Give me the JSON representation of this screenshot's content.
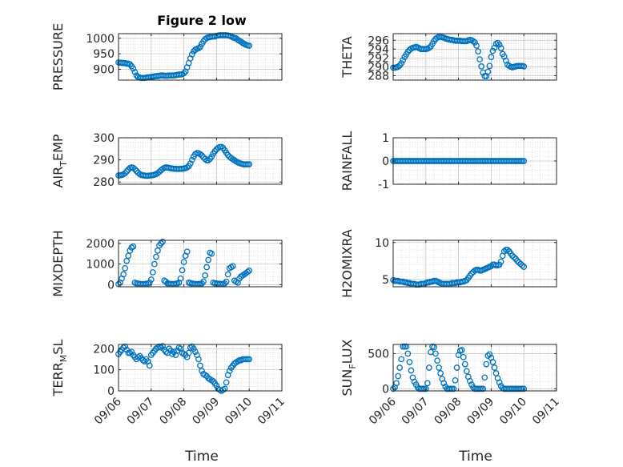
{
  "figure": {
    "title": "Figure 2 low",
    "xlabel": "Time",
    "marker_color": "#0072BD",
    "x_ticks": [
      "09/06",
      "09/07",
      "09/08",
      "09/09",
      "09/10",
      "09/11"
    ]
  },
  "chart_data": [
    {
      "type": "scatter",
      "ylabel": "PRESSURE",
      "ylabel_sub": "",
      "xlim": [
        0,
        5
      ],
      "ylim": [
        865,
        1015
      ],
      "yticks": [
        900,
        950,
        1000
      ],
      "x": [
        0.0,
        0.05,
        0.1,
        0.15,
        0.2,
        0.25,
        0.3,
        0.35,
        0.4,
        0.45,
        0.5,
        0.55,
        0.6,
        0.65,
        0.7,
        0.75,
        0.8,
        0.85,
        0.9,
        0.95,
        1.0,
        1.05,
        1.1,
        1.15,
        1.2,
        1.25,
        1.3,
        1.35,
        1.4,
        1.45,
        1.5,
        1.55,
        1.6,
        1.65,
        1.7,
        1.75,
        1.8,
        1.85,
        1.9,
        1.95,
        2.0,
        2.05,
        2.1,
        2.15,
        2.2,
        2.25,
        2.3,
        2.35,
        2.4,
        2.45,
        2.5,
        2.55,
        2.6,
        2.65,
        2.7,
        2.75,
        2.8,
        2.85,
        2.9,
        2.95,
        3.0,
        3.05,
        3.1,
        3.15,
        3.2,
        3.25,
        3.3,
        3.35,
        3.4,
        3.45,
        3.5,
        3.55,
        3.6,
        3.65,
        3.7,
        3.75,
        3.8,
        3.85,
        3.9,
        3.95,
        4.0
      ],
      "y": [
        922,
        921,
        921,
        920,
        920,
        918,
        918,
        916,
        910,
        902,
        891,
        880,
        875,
        873,
        872,
        872,
        872,
        873,
        874,
        874,
        875,
        876,
        877,
        878,
        878,
        879,
        880,
        880,
        879,
        879,
        879,
        880,
        880,
        880,
        880,
        881,
        882,
        883,
        883,
        884,
        887,
        893,
        906,
        920,
        935,
        948,
        958,
        963,
        966,
        968,
        972,
        982,
        990,
        997,
        1001,
        1003,
        1004,
        1005,
        1006,
        1006,
        1008,
        1009,
        1010,
        1010,
        1010,
        1010,
        1010,
        1009,
        1008,
        1006,
        1003,
        1001,
        1000,
        995,
        992,
        989,
        985,
        982,
        979,
        977,
        976
      ]
    },
    {
      "type": "scatter",
      "ylabel": "THETA",
      "ylabel_sub": "",
      "xlim": [
        0,
        5
      ],
      "ylim": [
        287,
        297.5
      ],
      "yticks": [
        288,
        290,
        292,
        294,
        296
      ],
      "x": [
        0.0,
        0.05,
        0.1,
        0.15,
        0.2,
        0.25,
        0.3,
        0.35,
        0.4,
        0.45,
        0.5,
        0.55,
        0.6,
        0.65,
        0.7,
        0.75,
        0.8,
        0.85,
        0.9,
        0.95,
        1.0,
        1.05,
        1.1,
        1.15,
        1.2,
        1.25,
        1.3,
        1.35,
        1.4,
        1.45,
        1.5,
        1.55,
        1.6,
        1.65,
        1.7,
        1.75,
        1.8,
        1.85,
        1.9,
        1.95,
        2.0,
        2.05,
        2.1,
        2.15,
        2.2,
        2.25,
        2.3,
        2.35,
        2.4,
        2.45,
        2.5,
        2.55,
        2.6,
        2.65,
        2.7,
        2.75,
        2.8,
        2.85,
        2.9,
        2.95,
        3.0,
        3.05,
        3.1,
        3.15,
        3.2,
        3.25,
        3.3,
        3.35,
        3.4,
        3.45,
        3.5,
        3.55,
        3.6,
        3.65,
        3.7,
        3.75,
        3.8,
        3.85,
        3.9,
        3.95,
        4.0
      ],
      "y": [
        289.8,
        289.8,
        289.9,
        290.0,
        290.3,
        290.8,
        291.5,
        292.2,
        292.8,
        293.4,
        293.8,
        294.1,
        294.3,
        294.4,
        294.5,
        294.4,
        294.2,
        294.0,
        294.0,
        294.0,
        294.0,
        294.1,
        294.3,
        294.6,
        295.2,
        295.8,
        296.3,
        296.6,
        296.8,
        296.8,
        296.7,
        296.6,
        296.4,
        296.3,
        296.2,
        296.1,
        296.1,
        296.0,
        295.9,
        295.9,
        295.9,
        295.9,
        295.8,
        295.8,
        295.8,
        295.8,
        296.0,
        296.1,
        296.0,
        295.8,
        295.5,
        294.8,
        293.5,
        291.7,
        290.1,
        288.7,
        287.9,
        287.9,
        288.9,
        290.2,
        292.2,
        293.6,
        294.3,
        295.2,
        295.4,
        295.0,
        294.2,
        292.9,
        292.3,
        291.4,
        290.5,
        290.2,
        290.0,
        289.9,
        290.0,
        290.1,
        290.2,
        290.2,
        290.2,
        290.2,
        290.1
      ]
    },
    {
      "type": "scatter",
      "ylabel": "AIR",
      "ylabel_sub": "T",
      "ylabel_suffix": "EMP",
      "xlim": [
        0,
        5
      ],
      "ylim": [
        279,
        300
      ],
      "yticks": [
        280,
        290,
        300
      ],
      "x": [
        0.0,
        0.05,
        0.1,
        0.15,
        0.2,
        0.25,
        0.3,
        0.35,
        0.4,
        0.45,
        0.5,
        0.55,
        0.6,
        0.65,
        0.7,
        0.75,
        0.8,
        0.85,
        0.9,
        0.95,
        1.0,
        1.05,
        1.1,
        1.15,
        1.2,
        1.25,
        1.3,
        1.35,
        1.4,
        1.45,
        1.5,
        1.55,
        1.6,
        1.65,
        1.7,
        1.75,
        1.8,
        1.85,
        1.9,
        1.95,
        2.0,
        2.05,
        2.1,
        2.15,
        2.2,
        2.25,
        2.3,
        2.35,
        2.4,
        2.45,
        2.5,
        2.55,
        2.6,
        2.65,
        2.7,
        2.75,
        2.8,
        2.85,
        2.9,
        2.95,
        3.0,
        3.05,
        3.1,
        3.15,
        3.2,
        3.25,
        3.3,
        3.35,
        3.4,
        3.45,
        3.5,
        3.55,
        3.6,
        3.65,
        3.7,
        3.75,
        3.8,
        3.85,
        3.9,
        3.95,
        4.0
      ],
      "y": [
        283.0,
        283.0,
        283.2,
        283.5,
        284.0,
        284.8,
        285.6,
        286.3,
        286.6,
        286.4,
        285.8,
        285.0,
        284.2,
        283.6,
        283.2,
        283.0,
        282.9,
        282.8,
        282.8,
        282.9,
        283.0,
        283.1,
        283.3,
        283.6,
        284.0,
        284.6,
        285.3,
        285.9,
        286.4,
        286.6,
        286.5,
        286.4,
        286.2,
        286.1,
        286.0,
        286.0,
        285.9,
        285.9,
        286.0,
        286.0,
        286.1,
        286.3,
        286.6,
        287.2,
        288.4,
        290.0,
        291.5,
        292.6,
        293.1,
        293.0,
        292.6,
        292.0,
        291.2,
        290.4,
        289.8,
        289.8,
        290.5,
        291.5,
        292.8,
        293.9,
        294.8,
        295.4,
        295.8,
        295.9,
        295.4,
        294.3,
        293.2,
        292.2,
        291.4,
        290.8,
        290.3,
        289.8,
        289.3,
        288.9,
        288.6,
        288.3,
        288.1,
        287.9,
        288.0,
        288.0,
        288.0
      ]
    },
    {
      "type": "scatter",
      "ylabel": "RAINFALL",
      "ylabel_sub": "",
      "xlim": [
        0,
        5
      ],
      "ylim": [
        -1,
        1
      ],
      "yticks": [
        -1,
        0,
        1
      ],
      "x": [
        0.0,
        0.05,
        0.1,
        0.15,
        0.2,
        0.25,
        0.3,
        0.35,
        0.4,
        0.45,
        0.5,
        0.55,
        0.6,
        0.65,
        0.7,
        0.75,
        0.8,
        0.85,
        0.9,
        0.95,
        1.0,
        1.05,
        1.1,
        1.15,
        1.2,
        1.25,
        1.3,
        1.35,
        1.4,
        1.45,
        1.5,
        1.55,
        1.6,
        1.65,
        1.7,
        1.75,
        1.8,
        1.85,
        1.9,
        1.95,
        2.0,
        2.05,
        2.1,
        2.15,
        2.2,
        2.25,
        2.3,
        2.35,
        2.4,
        2.45,
        2.5,
        2.55,
        2.6,
        2.65,
        2.7,
        2.75,
        2.8,
        2.85,
        2.9,
        2.95,
        3.0,
        3.05,
        3.1,
        3.15,
        3.2,
        3.25,
        3.3,
        3.35,
        3.4,
        3.45,
        3.5,
        3.55,
        3.6,
        3.65,
        3.7,
        3.75,
        3.8,
        3.85,
        3.9,
        3.95,
        4.0
      ],
      "y": [
        0,
        0,
        0,
        0,
        0,
        0,
        0,
        0,
        0,
        0,
        0,
        0,
        0,
        0,
        0,
        0,
        0,
        0,
        0,
        0,
        0,
        0,
        0,
        0,
        0,
        0,
        0,
        0,
        0,
        0,
        0,
        0,
        0,
        0,
        0,
        0,
        0,
        0,
        0,
        0,
        0,
        0,
        0,
        0,
        0,
        0,
        0,
        0,
        0,
        0,
        0,
        0,
        0,
        0,
        0,
        0,
        0,
        0,
        0,
        0,
        0,
        0,
        0,
        0,
        0,
        0,
        0,
        0,
        0,
        0,
        0,
        0,
        0,
        0,
        0,
        0,
        0,
        0,
        0,
        0,
        0
      ]
    },
    {
      "type": "scatter",
      "ylabel": "MIXDEPTH",
      "ylabel_sub": "",
      "xlim": [
        0,
        5
      ],
      "ylim": [
        -100,
        2150
      ],
      "yticks": [
        0,
        1000,
        2000
      ],
      "x": [
        0.0,
        0.05,
        0.1,
        0.15,
        0.2,
        0.25,
        0.3,
        0.35,
        0.4,
        0.45,
        0.5,
        0.55,
        0.6,
        0.65,
        0.7,
        0.75,
        0.8,
        0.85,
        0.9,
        0.95,
        1.0,
        1.05,
        1.1,
        1.15,
        1.2,
        1.25,
        1.3,
        1.35,
        1.4,
        1.45,
        1.5,
        1.55,
        1.6,
        1.65,
        1.7,
        1.75,
        1.8,
        1.85,
        1.9,
        1.95,
        2.0,
        2.05,
        2.1,
        2.15,
        2.2,
        2.25,
        2.3,
        2.35,
        2.4,
        2.45,
        2.5,
        2.55,
        2.6,
        2.65,
        2.7,
        2.75,
        2.8,
        2.85,
        2.9,
        2.95,
        3.0,
        3.05,
        3.1,
        3.15,
        3.2,
        3.25,
        3.3,
        3.35,
        3.4,
        3.45,
        3.5,
        3.55,
        3.6,
        3.65,
        3.7,
        3.75,
        3.8,
        3.85,
        3.9,
        3.95,
        4.0
      ],
      "y": [
        30,
        100,
        300,
        500,
        800,
        1150,
        1400,
        1650,
        1800,
        1850,
        100,
        60,
        50,
        40,
        30,
        30,
        30,
        40,
        60,
        100,
        250,
        600,
        1000,
        1350,
        1650,
        1900,
        2000,
        2080,
        200,
        150,
        60,
        40,
        30,
        30,
        30,
        40,
        60,
        100,
        300,
        700,
        1100,
        1400,
        1600,
        100,
        80,
        60,
        40,
        30,
        30,
        30,
        40,
        60,
        150,
        450,
        850,
        1200,
        1550,
        1500,
        100,
        70,
        60,
        50,
        40,
        30,
        30,
        60,
        150,
        500,
        800,
        850,
        900,
        200,
        150,
        100,
        300,
        400,
        450,
        500,
        560,
        620,
        680
      ]
    },
    {
      "type": "scatter",
      "ylabel": "H2OMIXRA",
      "ylabel_sub": "",
      "xlim": [
        0,
        5
      ],
      "ylim": [
        4,
        10.3
      ],
      "yticks": [
        5,
        10
      ],
      "x": [
        0.0,
        0.05,
        0.1,
        0.15,
        0.2,
        0.25,
        0.3,
        0.35,
        0.4,
        0.45,
        0.5,
        0.55,
        0.6,
        0.65,
        0.7,
        0.75,
        0.8,
        0.85,
        0.9,
        0.95,
        1.0,
        1.05,
        1.1,
        1.15,
        1.2,
        1.25,
        1.3,
        1.35,
        1.4,
        1.45,
        1.5,
        1.55,
        1.6,
        1.65,
        1.7,
        1.75,
        1.8,
        1.85,
        1.9,
        1.95,
        2.0,
        2.05,
        2.1,
        2.15,
        2.2,
        2.25,
        2.3,
        2.35,
        2.4,
        2.45,
        2.5,
        2.55,
        2.6,
        2.65,
        2.7,
        2.75,
        2.8,
        2.85,
        2.9,
        2.95,
        3.0,
        3.05,
        3.1,
        3.15,
        3.2,
        3.25,
        3.3,
        3.35,
        3.4,
        3.45,
        3.5,
        3.55,
        3.6,
        3.65,
        3.7,
        3.75,
        3.8,
        3.85,
        3.9,
        3.95,
        4.0
      ],
      "y": [
        4.9,
        4.8,
        4.8,
        4.8,
        4.7,
        4.7,
        4.7,
        4.6,
        4.6,
        4.5,
        4.5,
        4.4,
        4.4,
        4.4,
        4.3,
        4.3,
        4.3,
        4.4,
        4.4,
        4.4,
        4.5,
        4.6,
        4.6,
        4.7,
        4.7,
        4.8,
        4.8,
        4.7,
        4.6,
        4.5,
        4.4,
        4.4,
        4.4,
        4.4,
        4.4,
        4.4,
        4.5,
        4.5,
        4.5,
        4.6,
        4.6,
        4.6,
        4.7,
        4.7,
        4.8,
        4.9,
        5.2,
        5.5,
        5.8,
        6.0,
        6.2,
        6.3,
        6.3,
        6.2,
        6.2,
        6.3,
        6.4,
        6.5,
        6.6,
        6.7,
        6.8,
        7.0,
        7.0,
        6.9,
        6.9,
        7.0,
        7.4,
        8.2,
        8.8,
        9.0,
        9.0,
        8.8,
        8.5,
        8.2,
        8.0,
        7.8,
        7.5,
        7.3,
        7.1,
        6.9,
        6.7
      ]
    },
    {
      "type": "scatter",
      "ylabel": "TERR",
      "ylabel_sub": "M",
      "ylabel_suffix": "SL",
      "xlim": [
        0,
        5
      ],
      "ylim": [
        0,
        220
      ],
      "yticks": [
        0,
        100,
        200
      ],
      "x": [
        0.0,
        0.05,
        0.1,
        0.15,
        0.2,
        0.25,
        0.3,
        0.35,
        0.4,
        0.45,
        0.5,
        0.55,
        0.6,
        0.65,
        0.7,
        0.75,
        0.8,
        0.85,
        0.9,
        0.95,
        1.0,
        1.05,
        1.1,
        1.15,
        1.2,
        1.25,
        1.3,
        1.35,
        1.4,
        1.45,
        1.5,
        1.55,
        1.6,
        1.65,
        1.7,
        1.75,
        1.8,
        1.85,
        1.9,
        1.95,
        2.0,
        2.05,
        2.1,
        2.15,
        2.2,
        2.25,
        2.3,
        2.35,
        2.4,
        2.45,
        2.5,
        2.55,
        2.6,
        2.65,
        2.7,
        2.75,
        2.8,
        2.85,
        2.9,
        2.95,
        3.0,
        3.05,
        3.1,
        3.15,
        3.2,
        3.25,
        3.3,
        3.35,
        3.4,
        3.45,
        3.5,
        3.55,
        3.6,
        3.65,
        3.7,
        3.75,
        3.8,
        3.85,
        3.9,
        3.95,
        4.0
      ],
      "y": [
        175,
        185,
        195,
        205,
        210,
        195,
        180,
        180,
        185,
        170,
        160,
        150,
        160,
        165,
        155,
        145,
        140,
        150,
        140,
        120,
        170,
        180,
        190,
        200,
        205,
        210,
        205,
        212,
        195,
        185,
        180,
        200,
        190,
        175,
        185,
        170,
        190,
        205,
        200,
        180,
        175,
        170,
        160,
        180,
        205,
        210,
        200,
        185,
        170,
        150,
        120,
        95,
        80,
        75,
        70,
        60,
        55,
        50,
        45,
        35,
        25,
        10,
        5,
        0,
        5,
        10,
        40,
        75,
        95,
        110,
        120,
        130,
        135,
        140,
        145,
        145,
        150,
        150,
        150,
        150,
        150
      ]
    },
    {
      "type": "scatter",
      "ylabel": "SUN",
      "ylabel_sub": "F",
      "ylabel_suffix": "LUX",
      "xlim": [
        0,
        5
      ],
      "ylim": [
        -30,
        630
      ],
      "yticks": [
        0,
        500
      ],
      "x": [
        0.0,
        0.05,
        0.1,
        0.15,
        0.2,
        0.25,
        0.3,
        0.35,
        0.4,
        0.45,
        0.5,
        0.55,
        0.6,
        0.65,
        0.7,
        0.75,
        0.8,
        0.85,
        0.9,
        0.95,
        1.0,
        1.05,
        1.1,
        1.15,
        1.2,
        1.25,
        1.3,
        1.35,
        1.4,
        1.45,
        1.5,
        1.55,
        1.6,
        1.65,
        1.7,
        1.75,
        1.8,
        1.85,
        1.9,
        1.95,
        2.0,
        2.05,
        2.1,
        2.15,
        2.2,
        2.25,
        2.3,
        2.35,
        2.4,
        2.45,
        2.5,
        2.55,
        2.6,
        2.65,
        2.7,
        2.75,
        2.8,
        2.85,
        2.9,
        2.95,
        3.0,
        3.05,
        3.1,
        3.15,
        3.2,
        3.25,
        3.3,
        3.35,
        3.4,
        3.45,
        3.5,
        3.55,
        3.6,
        3.65,
        3.7,
        3.75,
        3.8,
        3.85,
        3.9,
        3.95,
        4.0
      ],
      "y": [
        0,
        20,
        80,
        180,
        300,
        420,
        600,
        600,
        600,
        500,
        380,
        260,
        160,
        100,
        60,
        20,
        0,
        0,
        0,
        0,
        0,
        80,
        300,
        520,
        600,
        590,
        500,
        400,
        300,
        220,
        140,
        80,
        30,
        0,
        0,
        0,
        0,
        0,
        120,
        300,
        480,
        540,
        550,
        450,
        350,
        250,
        170,
        110,
        60,
        20,
        0,
        0,
        0,
        0,
        0,
        0,
        160,
        350,
        470,
        490,
        440,
        380,
        300,
        220,
        150,
        90,
        40,
        10,
        0,
        0,
        0,
        0,
        0,
        0,
        0,
        0,
        0,
        0,
        0,
        0,
        0
      ]
    }
  ]
}
